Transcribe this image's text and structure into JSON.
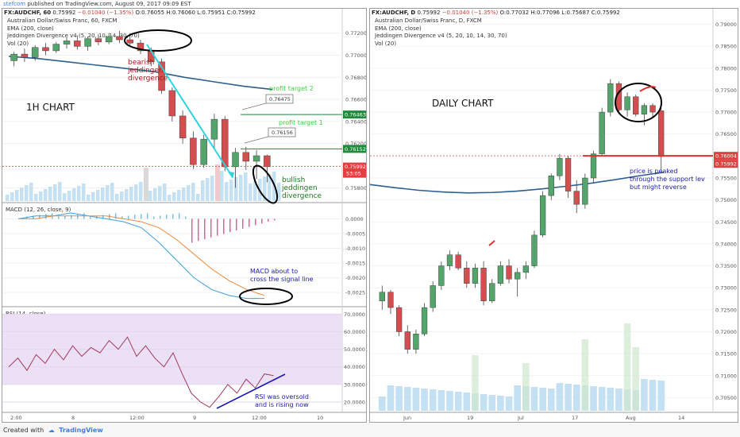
{
  "header": {
    "brand": "stefcom",
    "published": "published on TradingView.com, August 09, 2017 09:09 EST"
  },
  "left_chart": {
    "ticker": "FX:AUDCHF, 60",
    "price": "0.75992",
    "change": "−0.01040 (−1.35%)",
    "ohlc": "O:0.76055 H:0.76060 L:0.75951 C:0.75992",
    "series_name": "Australian Dollar/Swiss Franc, 60, FXCM",
    "indicators": [
      "EMA (200, close)",
      "Jeddingen Divergence v4 (5, 20, 10, 14, 30, 70)",
      "Vol (20)"
    ],
    "macd_label": "MACD (12, 26, close, 9)",
    "rsi_label": "RSI (14, close)",
    "price_axis": [
      "0.77200",
      "0.77000",
      "0.76800",
      "0.76600",
      "0.76400",
      "0.76200",
      "0.76000",
      "0.75800"
    ],
    "macd_axis": [
      "0.0000",
      "-0.0005",
      "-0.0010",
      "-0.0015",
      "-0.0020",
      "-0.0025"
    ],
    "rsi_axis": [
      "70.0000",
      "60.0000",
      "50.0000",
      "40.0000",
      "30.0000",
      "20.0000"
    ],
    "time_axis": [
      "2:00",
      "8",
      "12:00",
      "9",
      "12:00",
      "10"
    ],
    "price_tags": {
      "pt2": "0.76463",
      "pt1": "0.76152",
      "last": "0.75992",
      "countdown": "53:05"
    },
    "callouts": {
      "c2": "0.76475",
      "c1": "0.76156"
    },
    "annotations": {
      "title": "1H CHART",
      "bearish": [
        "bearish",
        "jeddingen",
        "divergence"
      ],
      "bullish": [
        "bullish",
        "jeddingen",
        "divergence"
      ],
      "pt2": "profit target 2",
      "pt1": "profit target 1",
      "macd_note": [
        "MACD about to",
        "cross the signal line"
      ],
      "rsi_note": [
        "RSI was oversold",
        "and is rising now"
      ]
    }
  },
  "right_chart": {
    "ticker": "FX:AUDCHF, D",
    "price": "0.75992",
    "change": "−0.01040 (−1.35%)",
    "ohlc": "O:0.77032 H:0.77096 L:0.75687 C:0.75992",
    "series_name": "Australian Dollar/Swiss Franc, D, FXCM",
    "indicators": [
      "EMA (200, close)",
      "Jeddingen Divergence v4 (5, 20, 10, 14, 30, 70)",
      "Vol (20)"
    ],
    "price_axis": [
      "0.79000",
      "0.78500",
      "0.78000",
      "0.77500",
      "0.77000",
      "0.76500",
      "0.75500",
      "0.75000",
      "0.74500",
      "0.74000",
      "0.73500",
      "0.73000",
      "0.72500",
      "0.72000",
      "0.71500",
      "0.71000",
      "0.70500"
    ],
    "time_axis": [
      "Jun",
      "19",
      "Jul",
      "17",
      "Aug",
      "14"
    ],
    "price_tags": {
      "support": "0.76004",
      "last": "0.75992"
    },
    "annotations": {
      "title": "DAILY CHART",
      "note": [
        "price is peaked",
        "through the support lev",
        "but might reverse"
      ]
    }
  },
  "footer": {
    "created_with": "Created with",
    "brand": "TradingView"
  },
  "chart_data": [
    {
      "type": "line",
      "title": "FX:AUDCHF, 60",
      "ylim": [
        0.7568,
        0.7732
      ],
      "series": [
        {
          "name": "EMA (200, close)",
          "values": [
            0.7699,
            0.7697,
            0.7694,
            0.7691,
            0.7688,
            0.7685,
            0.768,
            0.7676,
            0.7672,
            0.7669
          ]
        }
      ],
      "candles": [
        [
          0.7695,
          0.7703,
          0.769,
          0.7701
        ],
        [
          0.7701,
          0.7706,
          0.7694,
          0.7698
        ],
        [
          0.7698,
          0.7709,
          0.7695,
          0.7707
        ],
        [
          0.7707,
          0.7711,
          0.77,
          0.7704
        ],
        [
          0.7704,
          0.7712,
          0.7702,
          0.771
        ],
        [
          0.771,
          0.7716,
          0.7706,
          0.7713
        ],
        [
          0.7713,
          0.7718,
          0.7705,
          0.7708
        ],
        [
          0.7708,
          0.7717,
          0.7704,
          0.7715
        ],
        [
          0.7715,
          0.7719,
          0.7709,
          0.7712
        ],
        [
          0.7712,
          0.772,
          0.771,
          0.7717
        ],
        [
          0.7717,
          0.7722,
          0.7711,
          0.7714
        ],
        [
          0.7714,
          0.772,
          0.7708,
          0.7711
        ],
        [
          0.7711,
          0.7714,
          0.7701,
          0.7704
        ],
        [
          0.7704,
          0.7707,
          0.769,
          0.7694
        ],
        [
          0.7694,
          0.7697,
          0.7665,
          0.7668
        ],
        [
          0.7668,
          0.7671,
          0.764,
          0.7645
        ],
        [
          0.7645,
          0.765,
          0.762,
          0.7625
        ],
        [
          0.7625,
          0.7631,
          0.7597,
          0.7601
        ],
        [
          0.7601,
          0.7628,
          0.7598,
          0.7624
        ],
        [
          0.7624,
          0.7647,
          0.7615,
          0.7642
        ],
        [
          0.7642,
          0.7645,
          0.7595,
          0.7599
        ],
        [
          0.7599,
          0.7616,
          0.758,
          0.7612
        ],
        [
          0.7612,
          0.7617,
          0.7596,
          0.7604
        ],
        [
          0.7604,
          0.7614,
          0.7588,
          0.7609
        ],
        [
          0.7609,
          0.761,
          0.7585,
          0.7599
        ]
      ],
      "annotations": [
        "profit target 2: 0.76463",
        "profit target 1: 0.76152"
      ]
    },
    {
      "type": "line",
      "title": "MACD (12, 26, close, 9)",
      "ylim": [
        -0.0029,
        0.0002
      ],
      "series": [
        {
          "name": "MACD",
          "values": [
            0.0,
            0.0001,
            0.0001,
            0.0002,
            0.0001,
            0.0,
            -0.0001,
            -0.0003,
            -0.0008,
            -0.0014,
            -0.002,
            -0.0024,
            -0.0026,
            -0.0027,
            -0.0027
          ]
        },
        {
          "name": "Signal",
          "values": [
            0.0,
            0.0,
            0.0001,
            0.0001,
            0.0001,
            0.0001,
            0.0,
            -0.0001,
            -0.0003,
            -0.0007,
            -0.0012,
            -0.0017,
            -0.0021,
            -0.0024,
            -0.0026
          ]
        }
      ]
    },
    {
      "type": "line",
      "title": "RSI (14, close)",
      "ylim": [
        15,
        72
      ],
      "series": [
        {
          "name": "RSI",
          "values": [
            40,
            45,
            38,
            47,
            42,
            50,
            44,
            52,
            46,
            51,
            48,
            55,
            50,
            57,
            46,
            52,
            45,
            40,
            48,
            36,
            25,
            20,
            17,
            23,
            30,
            25,
            33,
            28,
            36,
            35
          ]
        }
      ]
    },
    {
      "type": "line",
      "title": "FX:AUDCHF, D",
      "ylim": [
        0.702,
        0.791
      ],
      "series": [
        {
          "name": "EMA (200, close)",
          "values": [
            0.7535,
            0.7528,
            0.7522,
            0.7518,
            0.7516,
            0.7517,
            0.752,
            0.7525,
            0.7531,
            0.7538,
            0.7546,
            0.7555,
            0.7563
          ]
        }
      ],
      "candles": [
        [
          0.727,
          0.7305,
          0.725,
          0.729
        ],
        [
          0.729,
          0.7295,
          0.724,
          0.7255
        ],
        [
          0.7255,
          0.726,
          0.719,
          0.72
        ],
        [
          0.72,
          0.7215,
          0.715,
          0.716
        ],
        [
          0.716,
          0.7205,
          0.715,
          0.7195
        ],
        [
          0.7195,
          0.7265,
          0.719,
          0.7255
        ],
        [
          0.7255,
          0.7315,
          0.7245,
          0.7305
        ],
        [
          0.7305,
          0.736,
          0.7295,
          0.735
        ],
        [
          0.735,
          0.7385,
          0.734,
          0.7375
        ],
        [
          0.7375,
          0.7382,
          0.734,
          0.7345
        ],
        [
          0.7345,
          0.736,
          0.73,
          0.731
        ],
        [
          0.731,
          0.7355,
          0.73,
          0.7345
        ],
        [
          0.7345,
          0.736,
          0.726,
          0.727
        ],
        [
          0.727,
          0.732,
          0.7265,
          0.731
        ],
        [
          0.731,
          0.736,
          0.7305,
          0.735
        ],
        [
          0.735,
          0.7365,
          0.731,
          0.732
        ],
        [
          0.732,
          0.7345,
          0.728,
          0.7335
        ],
        [
          0.7335,
          0.736,
          0.732,
          0.735
        ],
        [
          0.735,
          0.743,
          0.7345,
          0.742
        ],
        [
          0.742,
          0.752,
          0.7415,
          0.751
        ],
        [
          0.751,
          0.756,
          0.75,
          0.7555
        ],
        [
          0.7555,
          0.7605,
          0.7545,
          0.7595
        ],
        [
          0.7595,
          0.76,
          0.7505,
          0.752
        ],
        [
          0.752,
          0.7545,
          0.747,
          0.749
        ],
        [
          0.749,
          0.756,
          0.748,
          0.755
        ],
        [
          0.755,
          0.7612,
          0.754,
          0.7605
        ],
        [
          0.7605,
          0.771,
          0.76,
          0.77
        ],
        [
          0.77,
          0.7775,
          0.769,
          0.7765
        ],
        [
          0.7765,
          0.777,
          0.7695,
          0.7705
        ],
        [
          0.7705,
          0.7745,
          0.769,
          0.7735
        ],
        [
          0.7735,
          0.774,
          0.769,
          0.7695
        ],
        [
          0.7695,
          0.772,
          0.767,
          0.7715
        ],
        [
          0.7715,
          0.772,
          0.769,
          0.77
        ],
        [
          0.7703,
          0.771,
          0.7569,
          0.7599
        ]
      ],
      "annotations": [
        "support: 0.76004"
      ]
    }
  ]
}
